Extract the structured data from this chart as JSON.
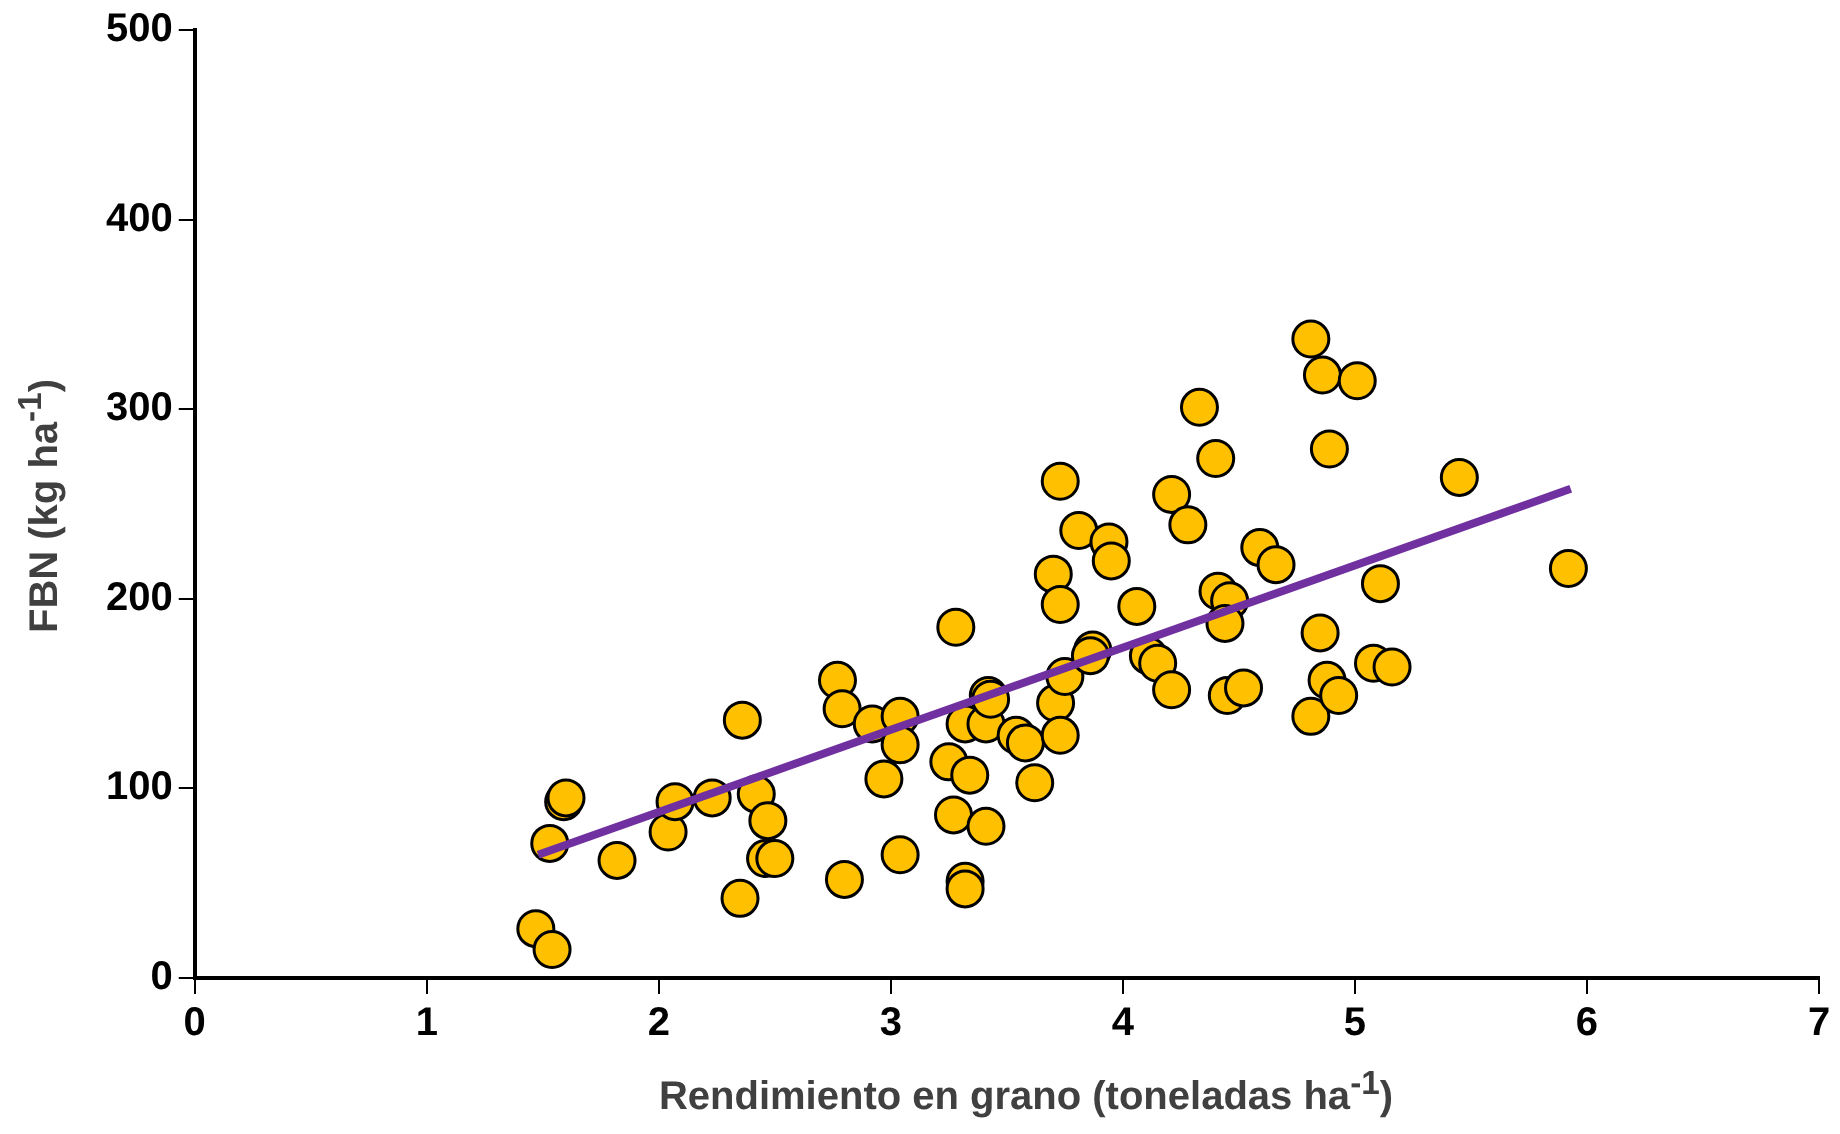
{
  "chart_data": {
    "type": "scatter",
    "xlabel": "Rendimiento en grano (toneladas ha$^{-1}$)",
    "ylabel": "FBN (kg ha$^{-1}$)",
    "xlim": [
      0,
      7
    ],
    "xticks": [
      0,
      1,
      2,
      3,
      4,
      5,
      6,
      7
    ],
    "ylim": [
      0,
      500
    ],
    "yticks": [
      0,
      100,
      200,
      300,
      400,
      500
    ],
    "grid": false,
    "legend": false,
    "series": [
      {
        "marker": "circle",
        "color": "#ffc000",
        "x": [
          1.47,
          1.54,
          1.53,
          1.59,
          1.6,
          1.82,
          2.04,
          2.07,
          2.23,
          2.36,
          2.35,
          2.42,
          2.46,
          2.47,
          2.5,
          2.77,
          2.79,
          2.8,
          2.92,
          2.97,
          3.04,
          3.04,
          3.04,
          3.28,
          3.25,
          3.27,
          3.32,
          3.32,
          3.32,
          3.34,
          3.42,
          3.41,
          3.41,
          3.43,
          3.54,
          3.58,
          3.62,
          3.7,
          3.73,
          3.73,
          3.71,
          3.73,
          3.75,
          3.81,
          3.87,
          3.86,
          3.94,
          3.95,
          4.06,
          4.11,
          4.15,
          4.21,
          4.21,
          4.28,
          4.33,
          4.4,
          4.41,
          4.46,
          4.44,
          4.45,
          4.52,
          4.59,
          4.66,
          4.81,
          4.86,
          5.01,
          4.89,
          4.85,
          4.81,
          4.88,
          4.93,
          5.08,
          5.16,
          5.11,
          5.45,
          5.92
        ],
        "values": [
          26,
          15,
          71,
          93,
          95,
          62,
          77,
          93,
          95,
          136,
          42,
          97,
          63,
          83,
          63,
          157,
          142,
          52,
          134,
          105,
          138,
          123,
          65,
          185,
          114,
          86,
          51,
          47,
          134,
          107,
          149,
          134,
          80,
          147,
          128,
          124,
          103,
          213,
          262,
          197,
          145,
          128,
          159,
          236,
          173,
          170,
          230,
          220,
          196,
          170,
          166,
          152,
          255,
          239,
          301,
          274,
          204,
          199,
          187,
          149,
          153,
          227,
          218,
          337,
          318,
          315,
          279,
          182,
          138,
          157,
          149,
          166,
          164,
          208,
          264,
          216
        ]
      },
      {
        "type": "line",
        "marker": "none",
        "color": "#7030a0",
        "x": [
          1.48,
          5.93
        ],
        "values": [
          65,
          258
        ]
      }
    ]
  }
}
